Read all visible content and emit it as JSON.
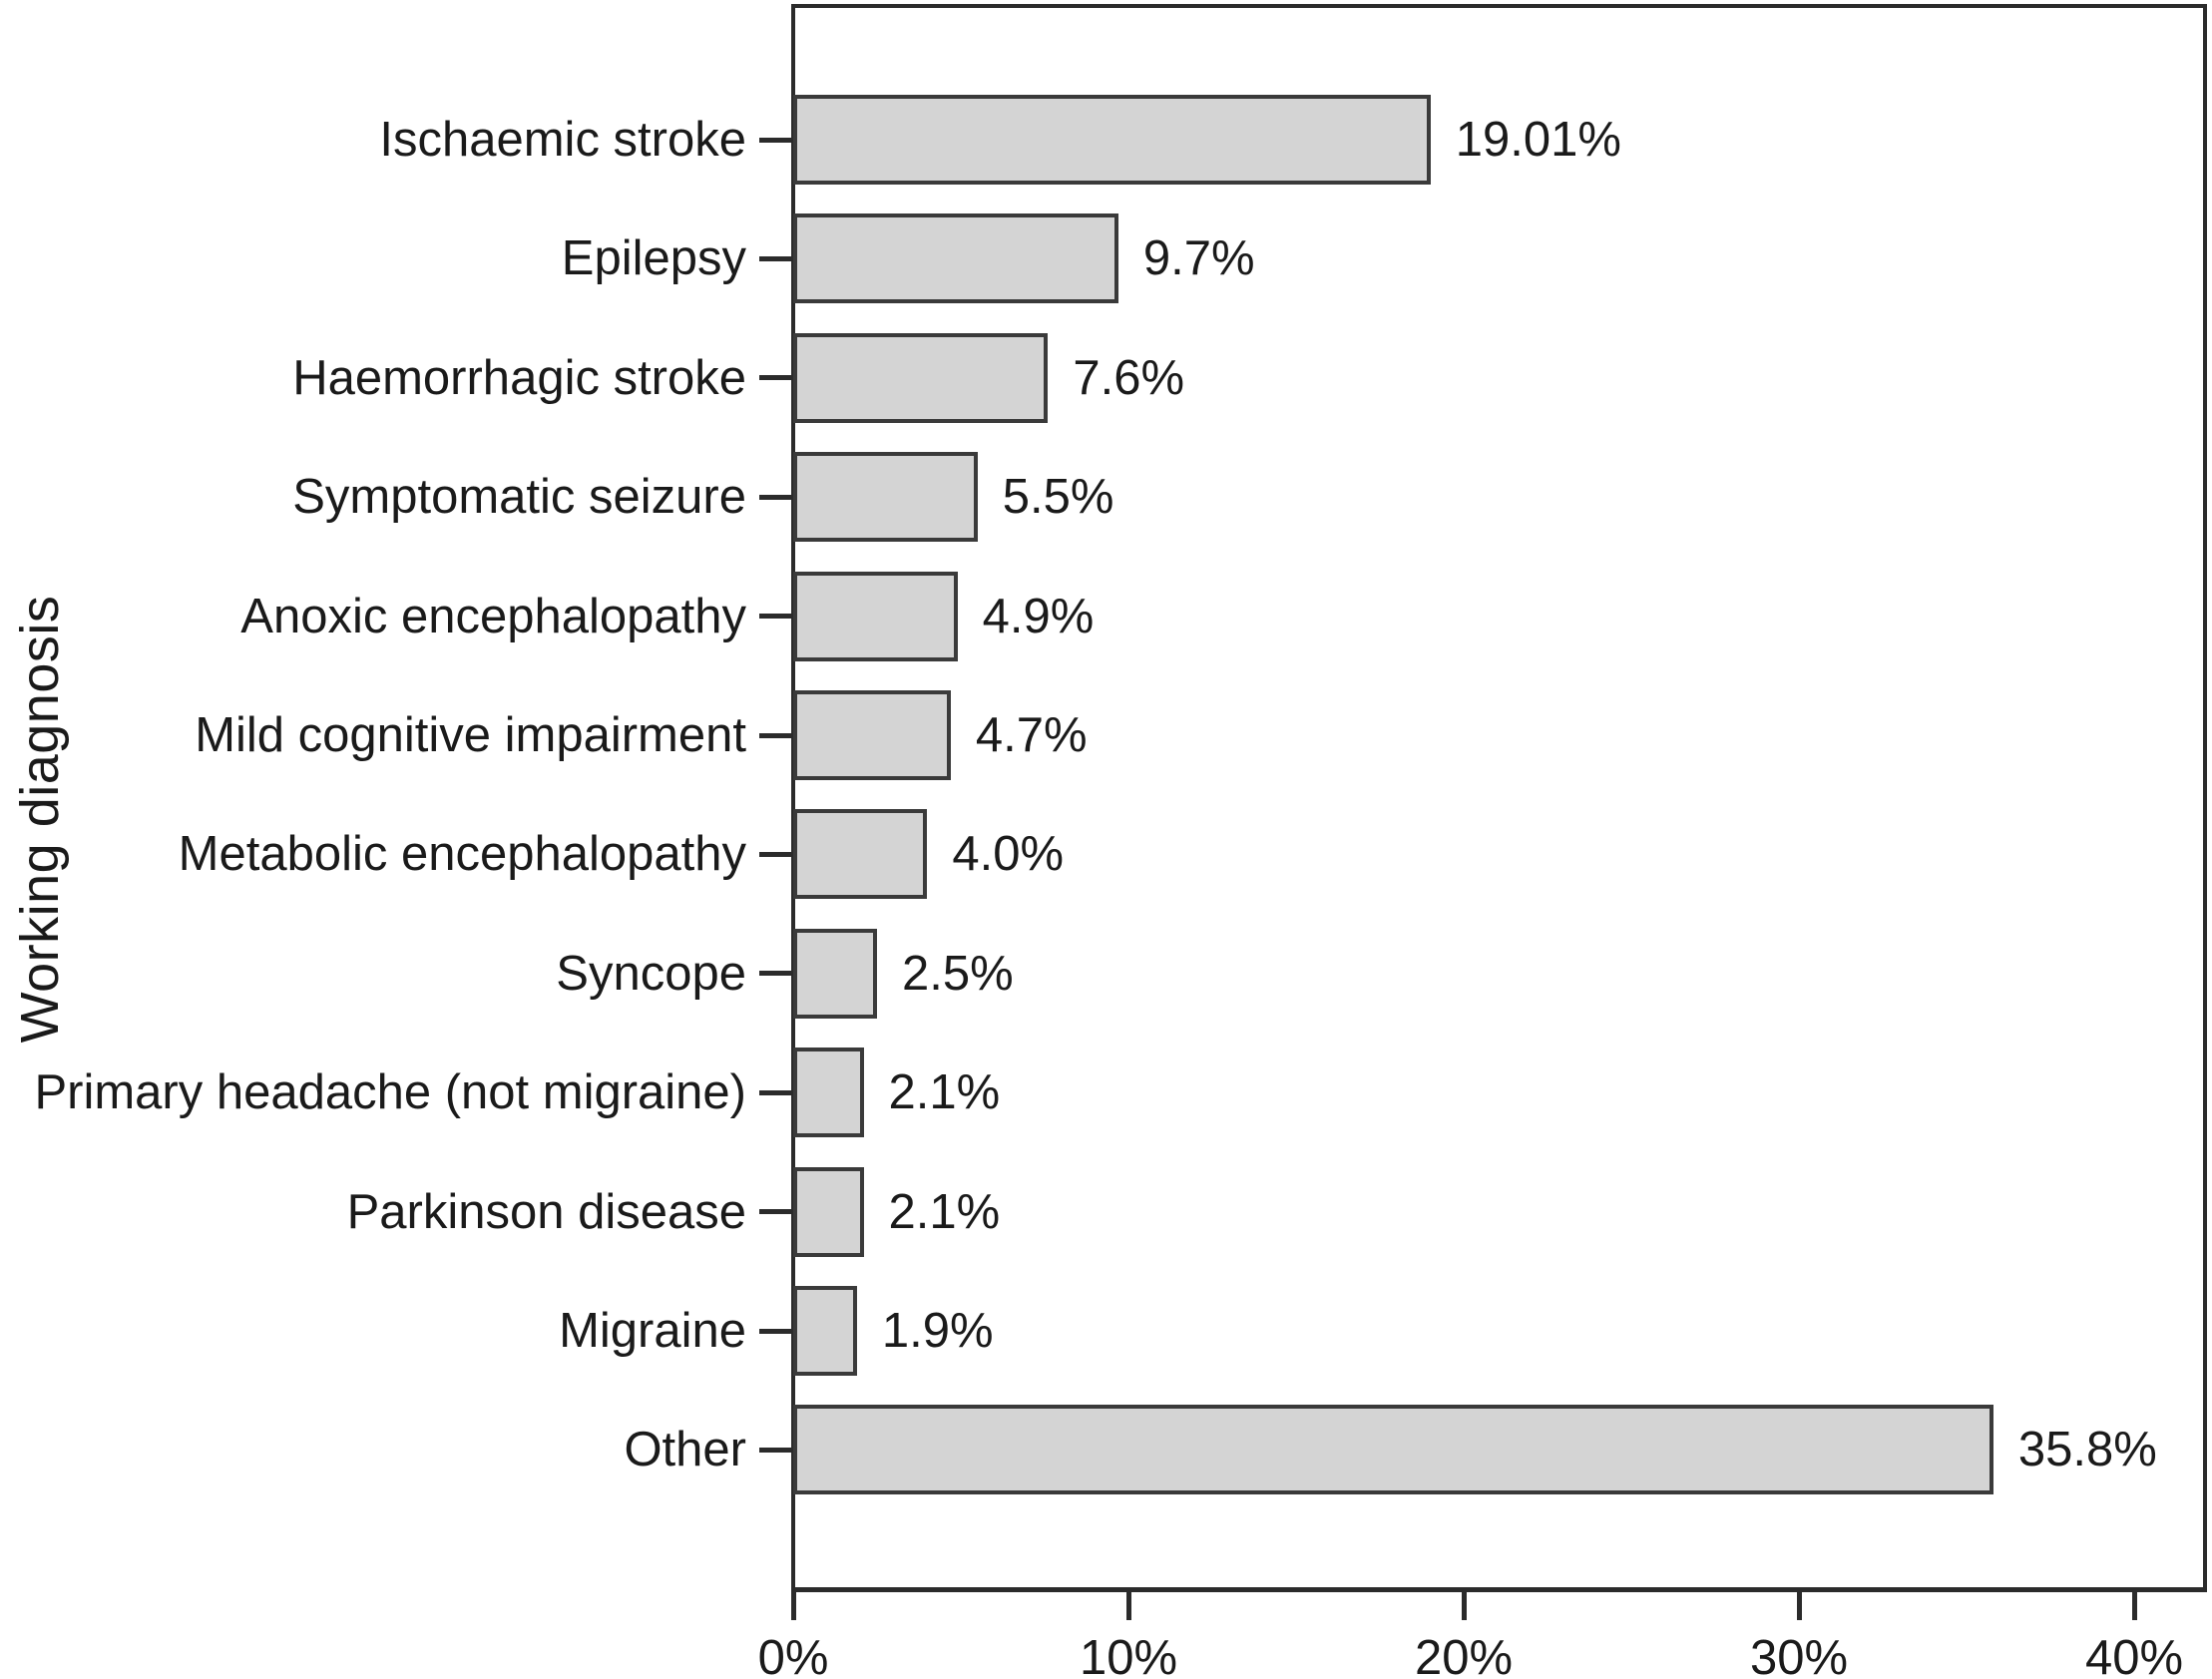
{
  "chart_data": {
    "type": "bar",
    "orientation": "horizontal",
    "title": "",
    "xlabel": "",
    "ylabel": "Working diagnosis",
    "categories": [
      "Ischaemic stroke",
      "Epilepsy",
      "Haemorrhagic stroke",
      "Symptomatic seizure",
      "Anoxic encephalopathy",
      "Mild cognitive impairment",
      "Metabolic encephalopathy",
      "Syncope",
      "Primary headache (not migraine)",
      "Parkinson disease",
      "Migraine",
      "Other"
    ],
    "values": [
      19.01,
      9.7,
      7.6,
      5.5,
      4.9,
      4.7,
      4.0,
      2.5,
      2.1,
      2.1,
      1.9,
      35.8
    ],
    "value_labels": [
      "19.01%",
      "9.7%",
      "7.6%",
      "5.5%",
      "4.9%",
      "4.7%",
      "4.0%",
      "2.5%",
      "2.1%",
      "2.1%",
      "1.9%",
      "35.8%"
    ],
    "x_ticks": [
      "0%",
      "10%",
      "20%",
      "30%",
      "40%"
    ],
    "x_tick_values": [
      0,
      10,
      20,
      30,
      40
    ],
    "xlim": [
      0,
      42.2
    ],
    "grid": false,
    "legend": "none",
    "bar_color": "#d4d4d4",
    "bar_border_color": "#3a3a3a",
    "axis_color": "#2b2b2b",
    "text_color": "#1a1a1a"
  }
}
